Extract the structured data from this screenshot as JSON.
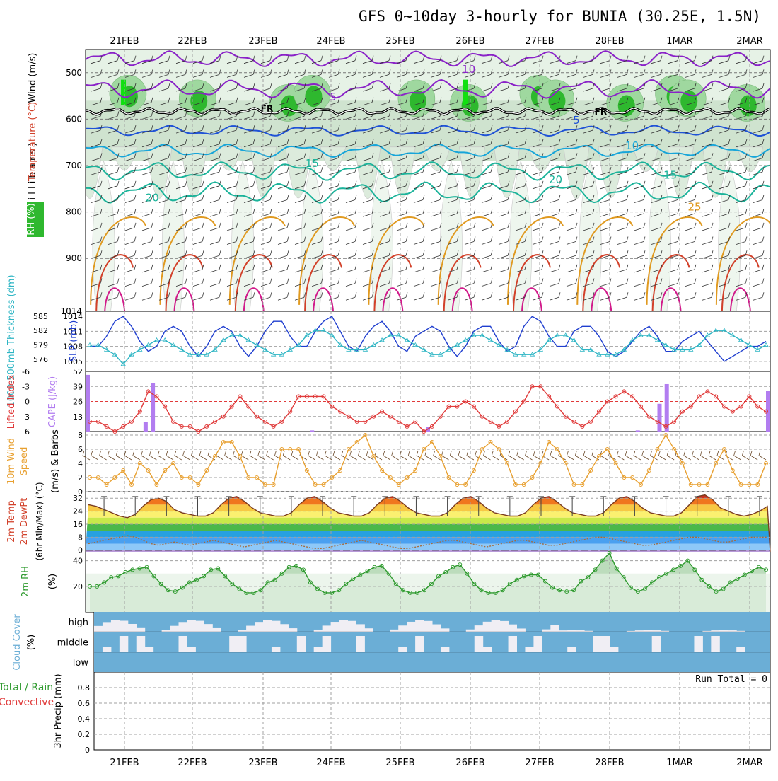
{
  "title": "GFS 0~10day 3-hourly for BUNIA (30.25E, 1.5N)",
  "dates": [
    "21FEB",
    "22FEB",
    "23FEB",
    "24FEB",
    "25FEB",
    "26FEB",
    "27FEB",
    "28FEB",
    "1MAR",
    "2MAR"
  ],
  "colors": {
    "grid": "#a0a0a0",
    "rh_green": "#2eb82e",
    "temp_purple": "#8a22c8",
    "temp_blue": "#1f52d6",
    "temp_cyan": "#17a5d9",
    "temp_teal": "#1bb39a",
    "temp_orange": "#e09a20",
    "temp_red": "#d2412a",
    "temp_magenta": "#d11a8a",
    "slp": "#1f3ecf",
    "thickness": "#2db5c4",
    "lifted": "#e03a3a",
    "cape": "#b27df0",
    "wind": "#e8a030",
    "rh2m": "#2e9a2e",
    "cloud": "#6baed6",
    "cloud_clear": "#f0eef4"
  },
  "chart_data": [
    {
      "panel": "upper-air",
      "type": "heatmap",
      "ylabel_left": "Wind (m/s)",
      "ylabel_temp": "Temperature (°C)",
      "ylabel_rh": "RH (%)",
      "ylabel_unit": "( m i l l i b a r s )",
      "yticks": [
        500,
        600,
        700,
        800,
        900,
        1014
      ],
      "ylim": [
        450,
        1014
      ],
      "contour_labels": [
        {
          "label": "FR",
          "t": 2.05,
          "p": 583
        },
        {
          "label": "FR",
          "t": 6.85,
          "p": 590
        },
        {
          "label": "10",
          "t": 4.95,
          "p": 500
        },
        {
          "label": "5",
          "t": 3.0,
          "p": 560
        },
        {
          "label": "5",
          "t": 6.5,
          "p": 610
        },
        {
          "label": "10",
          "t": 7.3,
          "p": 665
        },
        {
          "label": "15",
          "t": 2.7,
          "p": 703
        },
        {
          "label": "15",
          "t": 7.85,
          "p": 728
        },
        {
          "label": "20",
          "t": 0.4,
          "p": 777
        },
        {
          "label": "20",
          "t": 6.2,
          "p": 738
        },
        {
          "label": "25",
          "t": 8.2,
          "p": 797
        }
      ]
    },
    {
      "panel": "slp-thickness",
      "type": "line",
      "ylabel_left": "1000-500mb Thickness (dm)",
      "ylabel_right": "SLP (mb)",
      "yticks_left": [
        576,
        579,
        582,
        585
      ],
      "yticks_right": [
        1005,
        1008,
        1011,
        1014
      ],
      "series": [
        {
          "name": "SLP",
          "values": [
            1008,
            1008,
            1010,
            1013,
            1014,
            1012,
            1009,
            1007,
            1008,
            1011,
            1012,
            1011,
            1008,
            1006,
            1008,
            1011,
            1012,
            1011,
            1008,
            1006,
            1008,
            1011,
            1013,
            1013,
            1010,
            1008,
            1008,
            1011,
            1013,
            1014,
            1011,
            1008,
            1007,
            1010,
            1012,
            1013,
            1011,
            1008,
            1007,
            1010,
            1011,
            1012,
            1011,
            1008,
            1006,
            1008,
            1011,
            1012,
            1012,
            1009,
            1007,
            1008,
            1012,
            1014,
            1013,
            1010,
            1008,
            1008,
            1011,
            1012,
            1012,
            1010,
            1007,
            1006,
            1007,
            1009,
            1011,
            1012,
            1010,
            1007,
            1007,
            1009,
            1010,
            1011,
            1009,
            1007,
            1005,
            1006,
            1007,
            1008,
            1008,
            1009
          ]
        },
        {
          "name": "Thickness",
          "values": [
            579,
            579,
            578,
            577,
            575,
            577,
            578,
            579,
            580,
            580,
            579,
            578,
            577,
            577,
            577,
            578,
            580,
            581,
            581,
            580,
            579,
            578,
            577,
            577,
            578,
            579,
            581,
            582,
            582,
            581,
            579,
            578,
            578,
            578,
            579,
            580,
            581,
            581,
            580,
            579,
            578,
            577,
            577,
            578,
            579,
            580,
            581,
            581,
            580,
            579,
            578,
            577,
            577,
            577,
            578,
            580,
            581,
            581,
            580,
            578,
            578,
            577,
            577,
            577,
            578,
            580,
            581,
            581,
            580,
            579,
            578,
            578,
            578,
            579,
            581,
            582,
            582,
            581,
            580,
            579,
            578,
            579
          ]
        }
      ]
    },
    {
      "panel": "lifted-cape",
      "type": "bar",
      "ylabel_left": "Lifted Index",
      "ylabel_right": "CAPE (J/kg)",
      "yticks_left": [
        "-6",
        "-3",
        "0",
        "3",
        "6"
      ],
      "yticks_right": [
        13,
        26,
        39,
        52
      ],
      "series": [
        {
          "name": "Lifted Index",
          "values": [
            4,
            4,
            5,
            6,
            5,
            4,
            2,
            -2,
            -1,
            1,
            4,
            5,
            5,
            6,
            5,
            4,
            3,
            1,
            -1,
            1,
            3,
            4,
            5,
            4,
            2,
            -1,
            -1,
            -1,
            -1,
            1,
            2,
            3,
            4,
            4,
            3,
            2,
            3,
            4,
            5,
            4,
            6,
            5,
            3,
            1,
            1,
            0,
            1,
            3,
            4,
            5,
            4,
            2,
            0,
            -3,
            -3,
            -1,
            1,
            3,
            4,
            5,
            4,
            2,
            0,
            -1,
            -2,
            -1,
            1,
            3,
            4,
            5,
            4,
            2,
            1,
            -1,
            -2,
            -1,
            1,
            2,
            1,
            -1,
            1,
            2
          ]
        },
        {
          "name": "CAPE",
          "values": [
            49,
            0,
            0,
            0,
            0,
            0,
            0,
            0,
            8,
            42,
            0,
            0,
            0,
            0,
            0,
            0,
            0,
            0,
            0,
            0,
            0,
            0,
            0,
            0,
            0,
            0,
            0,
            0,
            0,
            0,
            0,
            1,
            0,
            0,
            0,
            0,
            0,
            0,
            0,
            0,
            0,
            0,
            0,
            0,
            0,
            0,
            0,
            4,
            0,
            0,
            0,
            0,
            0,
            0,
            0,
            0,
            0,
            0,
            0,
            0,
            0,
            0,
            0,
            0,
            0,
            0,
            0,
            0,
            0,
            0,
            0,
            0,
            0,
            0,
            0,
            0,
            1,
            0,
            0,
            24,
            41,
            0,
            0,
            0,
            0,
            0,
            0,
            0,
            0,
            0,
            0,
            0,
            0,
            0,
            35
          ]
        }
      ]
    },
    {
      "panel": "wind10m",
      "type": "line",
      "ylabel_left": "10m Wind",
      "ylabel_mid": "Speed",
      "ylabel_right": "(m/s) & Barbs",
      "yticks": [
        0,
        2,
        4,
        6,
        8
      ],
      "ylim": [
        0,
        8
      ],
      "series": [
        {
          "name": "Wind speed",
          "values": [
            2,
            2,
            1,
            2,
            3,
            1,
            4,
            3,
            1,
            3,
            4,
            2,
            2,
            1,
            3,
            5,
            7,
            7,
            5,
            2,
            2,
            1,
            1,
            6,
            6,
            6,
            3,
            1,
            1,
            2,
            3,
            6,
            7,
            8,
            5,
            3,
            2,
            1,
            2,
            3,
            6,
            7,
            5,
            2,
            1,
            1,
            3,
            6,
            7,
            6,
            4,
            1,
            1,
            2,
            4,
            7,
            6,
            4,
            1,
            1,
            3,
            5,
            6,
            4,
            2,
            2,
            1,
            3,
            6,
            8,
            6,
            4,
            1,
            1,
            1,
            4,
            6,
            3,
            1,
            1,
            1,
            4
          ]
        }
      ]
    },
    {
      "panel": "temp-dewpoint",
      "type": "area",
      "ylabel_left": "2m Temp",
      "ylabel_mid": "2m DewPt",
      "ylabel_right": "(6hr Min/Max) (°C)",
      "yticks": [
        0,
        8,
        16,
        24,
        32
      ],
      "ylim": [
        -1,
        36
      ],
      "series": [
        {
          "name": "Temperature",
          "values": [
            28,
            27,
            25,
            23,
            21,
            20,
            22,
            27,
            31,
            32,
            30,
            25,
            23,
            22,
            21,
            21,
            23,
            28,
            32,
            33,
            30,
            26,
            23,
            22,
            21,
            21,
            23,
            28,
            32,
            33,
            30,
            26,
            23,
            22,
            21,
            21,
            23,
            28,
            32,
            33,
            30,
            26,
            23,
            22,
            21,
            21,
            23,
            28,
            32,
            33,
            30,
            26,
            23,
            22,
            21,
            21,
            23,
            28,
            32,
            33,
            30,
            26,
            23,
            22,
            21,
            21,
            23,
            28,
            32,
            33,
            30,
            26,
            23,
            22,
            21,
            21,
            23,
            28,
            33,
            34,
            31,
            26,
            24,
            22,
            21,
            22,
            24,
            27
          ]
        },
        {
          "name": "Dewpoint",
          "values": [
            4,
            5,
            6,
            7,
            8,
            9,
            8,
            6,
            4,
            3,
            4,
            5,
            4,
            3,
            4,
            5,
            6,
            5,
            4,
            3,
            2,
            3,
            4,
            5,
            6,
            5,
            4,
            3,
            2,
            1,
            1,
            2,
            3,
            4,
            5,
            6,
            5,
            4,
            3,
            2,
            1,
            1,
            2,
            3,
            4,
            5,
            6,
            6,
            5,
            4,
            3,
            2,
            3,
            4,
            5,
            6,
            6,
            5,
            4,
            3,
            3,
            4,
            5,
            6,
            7,
            8,
            8,
            7,
            6,
            5,
            4,
            3,
            3,
            4,
            5,
            6,
            7,
            8,
            8,
            7,
            6,
            5,
            5,
            6,
            7,
            8,
            8,
            8
          ]
        }
      ]
    },
    {
      "panel": "rh2m",
      "type": "area",
      "ylabel_left": "2m RH",
      "ylabel_right": "(%)",
      "yticks": [
        20,
        40
      ],
      "ylim": [
        0,
        47
      ],
      "series": [
        {
          "name": "2m RH",
          "values": [
            20,
            20,
            23,
            27,
            28,
            31,
            33,
            34,
            35,
            28,
            22,
            17,
            16,
            19,
            23,
            25,
            28,
            33,
            34,
            28,
            22,
            18,
            15,
            15,
            17,
            23,
            25,
            30,
            35,
            36,
            33,
            23,
            18,
            15,
            15,
            17,
            22,
            26,
            29,
            32,
            35,
            36,
            30,
            22,
            17,
            15,
            15,
            17,
            22,
            28,
            31,
            35,
            37,
            30,
            22,
            17,
            15,
            15,
            17,
            22,
            25,
            28,
            29,
            29,
            24,
            19,
            17,
            16,
            17,
            24,
            27,
            33,
            40,
            46,
            34,
            27,
            19,
            16,
            18,
            23,
            27,
            30,
            33,
            36,
            40,
            33,
            25,
            20,
            16,
            18,
            23,
            26,
            29,
            32,
            35,
            33
          ]
        }
      ]
    },
    {
      "panel": "cloud",
      "type": "area",
      "ylabel_left": "Cloud Cover",
      "ylabel_right": "(%)",
      "levels": [
        "high",
        "middle",
        "low"
      ]
    },
    {
      "panel": "precip",
      "type": "bar",
      "ylabel_left": "Total / Rain",
      "ylabel_left2": "Convective",
      "ylabel_right": "3hr Precip (mm)",
      "yticks": [
        "0",
        "0.2",
        "0.4",
        "0.6",
        "0.8"
      ],
      "ylim": [
        0,
        1
      ],
      "run_total": "Run Total = 0",
      "values": []
    }
  ]
}
